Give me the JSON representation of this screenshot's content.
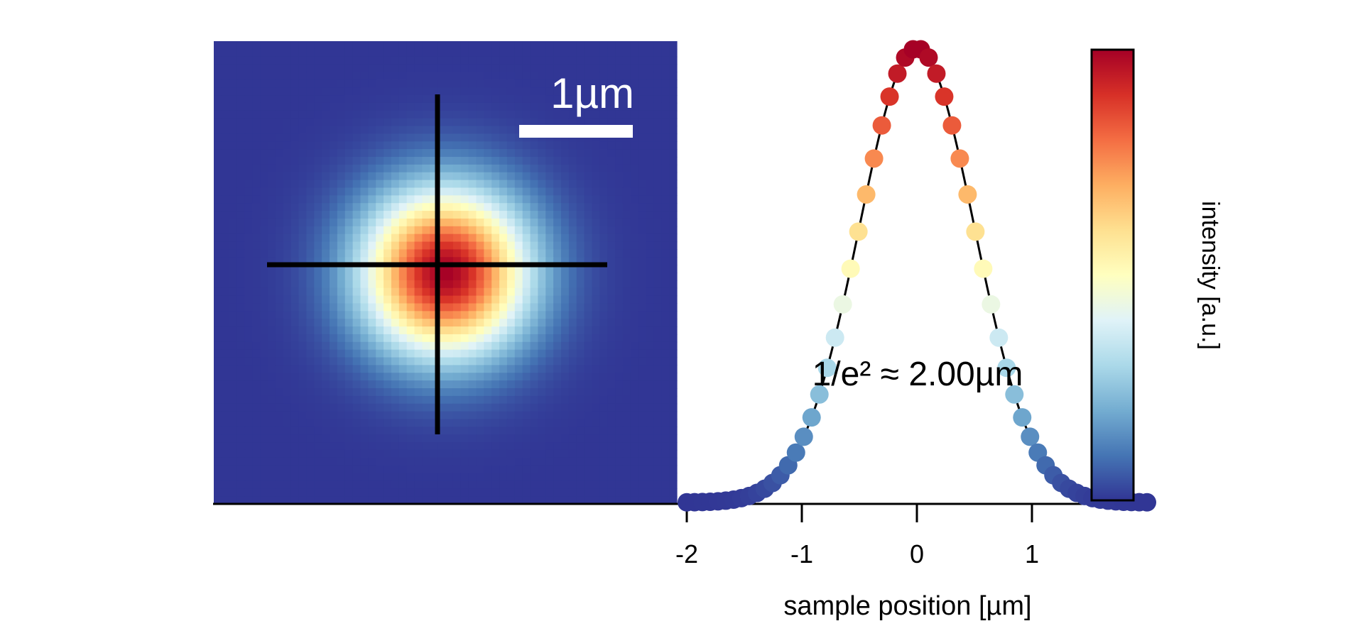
{
  "chart_data": [
    {
      "type": "heatmap",
      "title": "",
      "colormap": "RdYlBu_r",
      "grid_size": 60,
      "gaussian_sigma": 0.5,
      "crosshair": true,
      "scalebar": {
        "label": "1µm",
        "length_um": 1.0,
        "color": "#ffffff"
      }
    },
    {
      "type": "scatter",
      "title": "",
      "xlabel": "sample position [µm]",
      "ylabel": "",
      "xlim": [
        -2.0,
        2.0
      ],
      "ylim": [
        0.0,
        1.0
      ],
      "xticks": [
        -2,
        -1,
        0,
        1
      ],
      "xtick_labels": [
        "-2",
        "-1",
        "0",
        "1"
      ],
      "fit_line": {
        "type": "gaussian",
        "sigma": 0.5,
        "color": "#000000"
      },
      "annotation": "1/e² ≈ 2.00µm",
      "n_points": 60,
      "x_start": -2.0,
      "x_end": 2.0,
      "sigma": 0.5
    }
  ],
  "colorbar": {
    "label": "intensity [a.u.]",
    "colormap": "RdYlBu_r"
  }
}
